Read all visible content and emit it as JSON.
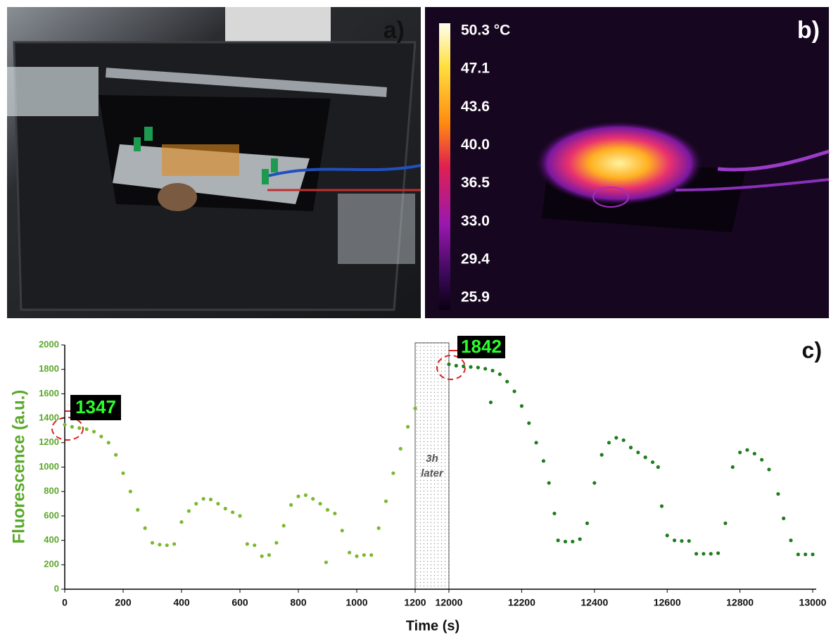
{
  "photo_a": {
    "label": "a)"
  },
  "photo_b": {
    "label": "b)",
    "colorbar_labels": [
      "50.3 °C",
      "47.1",
      "43.6",
      "40.0",
      "36.5",
      "33.0",
      "29.4",
      "25.9"
    ]
  },
  "chart_data": {
    "type": "scatter",
    "label": "c)",
    "xlabel": "Time (s)",
    "ylabel": "Fluorescence (a.u.)",
    "ylim": [
      0,
      2000
    ],
    "yticks": [
      0,
      200,
      400,
      600,
      800,
      1000,
      1200,
      1400,
      1600,
      1800,
      2000
    ],
    "gap_text": [
      "3h",
      "later"
    ],
    "annotations": [
      "1347",
      "1842"
    ],
    "segments": [
      {
        "xlim": [
          0,
          1200
        ],
        "xticks": [
          0,
          200,
          400,
          600,
          800,
          1000,
          1200
        ],
        "color": "#7cb82f",
        "x": [
          0,
          25,
          50,
          75,
          100,
          125,
          150,
          175,
          200,
          225,
          250,
          275,
          300,
          325,
          350,
          375,
          400,
          425,
          450,
          475,
          500,
          525,
          550,
          575,
          600,
          625,
          650,
          675,
          700,
          725,
          750,
          775,
          800,
          825,
          850,
          875,
          900,
          925,
          950,
          975,
          1000,
          1025,
          1050,
          1075,
          1100,
          1125,
          1150,
          1175,
          1200,
          895
        ],
        "values": [
          1347,
          1330,
          1320,
          1310,
          1290,
          1250,
          1200,
          1100,
          950,
          800,
          650,
          500,
          380,
          365,
          360,
          370,
          550,
          640,
          700,
          740,
          735,
          700,
          660,
          630,
          600,
          370,
          360,
          270,
          280,
          380,
          520,
          690,
          760,
          770,
          740,
          700,
          650,
          620,
          480,
          300,
          270,
          280,
          280,
          500,
          720,
          950,
          1150,
          1330,
          1480,
          220
        ]
      },
      {
        "xlim": [
          12000,
          13000
        ],
        "xticks": [
          12000,
          12200,
          12400,
          12600,
          12800,
          13000
        ],
        "color": "#1e7d1e",
        "x": [
          12000,
          12020,
          12040,
          12060,
          12080,
          12100,
          12120,
          12140,
          12160,
          12180,
          12200,
          12220,
          12240,
          12260,
          12275,
          12290,
          12300,
          12320,
          12340,
          12360,
          12380,
          12400,
          12420,
          12440,
          12460,
          12480,
          12500,
          12520,
          12540,
          12560,
          12575,
          12585,
          12600,
          12620,
          12640,
          12660,
          12680,
          12700,
          12720,
          12740,
          12760,
          12780,
          12800,
          12820,
          12840,
          12860,
          12880,
          12905,
          12920,
          12940,
          12960,
          12980,
          13000,
          12115
        ],
        "values": [
          1842,
          1830,
          1825,
          1820,
          1815,
          1805,
          1790,
          1760,
          1700,
          1620,
          1500,
          1360,
          1200,
          1050,
          870,
          620,
          400,
          390,
          390,
          410,
          540,
          870,
          1100,
          1200,
          1240,
          1220,
          1160,
          1120,
          1080,
          1040,
          1000,
          680,
          440,
          400,
          395,
          395,
          290,
          290,
          290,
          295,
          540,
          1000,
          1120,
          1140,
          1110,
          1060,
          980,
          780,
          580,
          400,
          285,
          285,
          285,
          1530
        ]
      }
    ]
  }
}
